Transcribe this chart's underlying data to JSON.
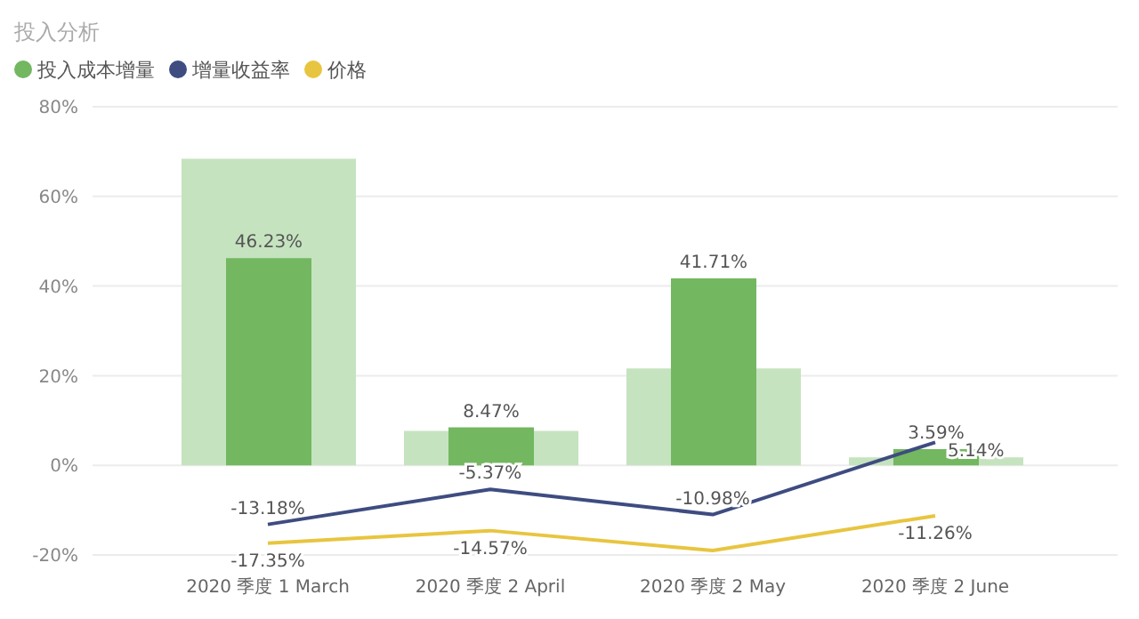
{
  "chart_data": {
    "type": "bar",
    "title": "投入分析",
    "categories": [
      "2020 季度 1 March",
      "2020 季度 2 April",
      "2020 季度 2 May",
      "2020 季度 2 June"
    ],
    "series": [
      {
        "color": "#c5e3bf",
        "values": [
          68.4,
          7.7,
          21.6,
          1.8
        ]
      },
      {
        "name": "投入成本增量",
        "color": "#73b761",
        "values": [
          46.23,
          8.47,
          41.71,
          3.59
        ],
        "value_labels": [
          "46.23%",
          "8.47%",
          "41.71%",
          "3.59%"
        ]
      },
      {
        "type": "line",
        "name": "增量收益率",
        "color": "#3e4c80",
        "values": [
          -13.18,
          -5.37,
          -10.98,
          5.14
        ],
        "value_labels": [
          "-13.18%",
          "-5.37%",
          "-10.98%",
          "5.14%"
        ]
      },
      {
        "type": "line",
        "name": "价格",
        "color": "#e8c540",
        "values": [
          -17.35,
          -14.57,
          -19,
          -11.26
        ],
        "value_labels": [
          "-17.35%",
          "-14.57%",
          null,
          "-11.26%"
        ]
      }
    ],
    "ylim": [
      -20,
      80
    ],
    "yticks": [
      {
        "value": -20,
        "label": "-20%"
      },
      {
        "value": 0,
        "label": "0%"
      },
      {
        "value": 20,
        "label": "20%"
      },
      {
        "value": 40,
        "label": "40%"
      },
      {
        "value": 60,
        "label": "60%"
      },
      {
        "value": 80,
        "label": "80%"
      }
    ],
    "grid": "y",
    "legend": "top left",
    "marker": "none"
  }
}
